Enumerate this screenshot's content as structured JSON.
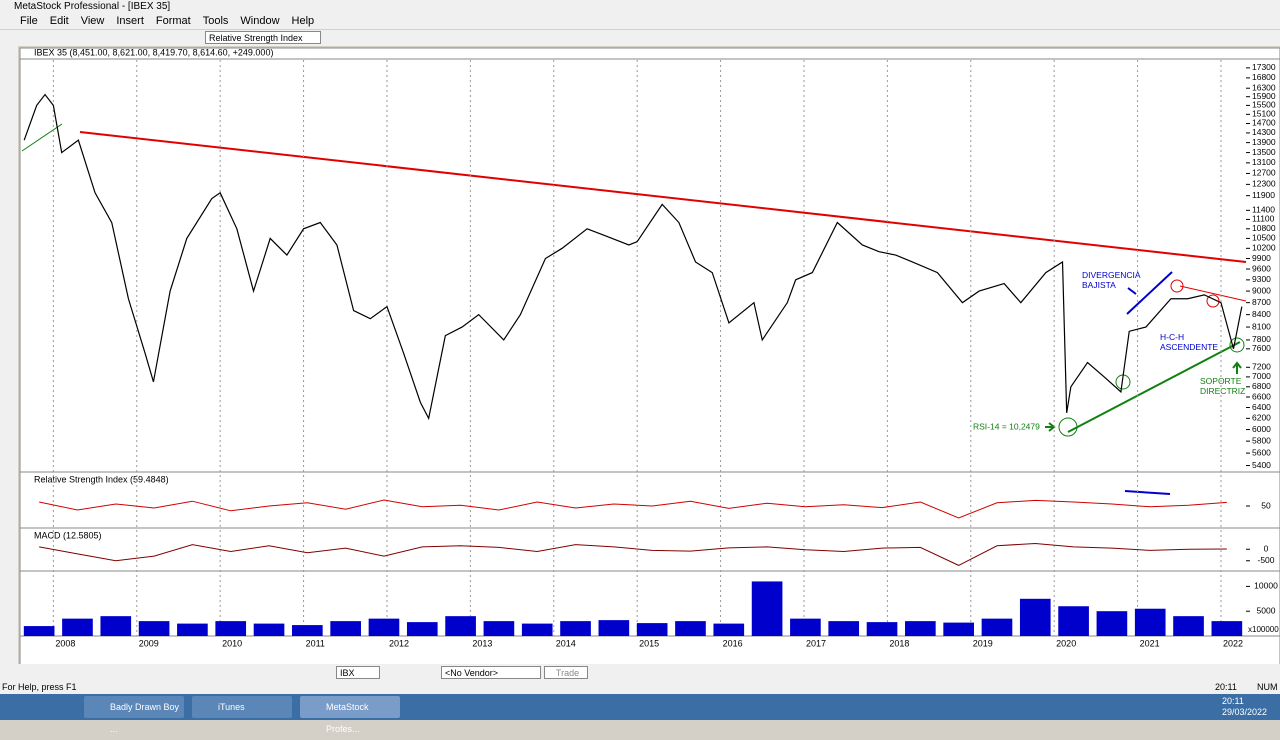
{
  "window": {
    "title": "MetaStock Professional - [IBEX 35]"
  },
  "menu": [
    "File",
    "Edit",
    "View",
    "Insert",
    "Format",
    "Tools",
    "Window",
    "Help"
  ],
  "toolbar": {
    "indicator": "Relative Strength Index"
  },
  "chart_header": "IBEX 35 (8,451.00, 8,621.00, 8,419.70, 8,614.60, +249.000)",
  "chart_data": {
    "type": "line",
    "color": "#000000",
    "log_scale": true,
    "x": [
      2007.65,
      2007.8,
      2007.9,
      2008.0,
      2008.1,
      2008.3,
      2008.5,
      2008.7,
      2008.9,
      2009.1,
      2009.2,
      2009.4,
      2009.6,
      2009.9,
      2010.0,
      2010.2,
      2010.4,
      2010.6,
      2010.8,
      2011.0,
      2011.2,
      2011.4,
      2011.6,
      2011.8,
      2012.0,
      2012.2,
      2012.4,
      2012.5,
      2012.7,
      2012.9,
      2013.1,
      2013.4,
      2013.6,
      2013.9,
      2014.1,
      2014.4,
      2014.6,
      2014.9,
      2015.0,
      2015.3,
      2015.5,
      2015.7,
      2015.9,
      2016.1,
      2016.4,
      2016.5,
      2016.8,
      2016.9,
      2017.1,
      2017.4,
      2017.7,
      2017.9,
      2018.1,
      2018.3,
      2018.6,
      2018.9,
      2019.1,
      2019.4,
      2019.6,
      2019.9,
      2020.1,
      2020.15,
      2020.2,
      2020.4,
      2020.6,
      2020.8,
      2020.9,
      2021.1,
      2021.4,
      2021.6,
      2021.8,
      2022.0,
      2022.15,
      2022.25
    ],
    "values": [
      14000,
      15500,
      16000,
      15500,
      13500,
      14000,
      12000,
      11000,
      8800,
      7500,
      6900,
      9000,
      10500,
      11800,
      12000,
      10800,
      9000,
      10500,
      10000,
      10800,
      11000,
      10300,
      8500,
      8300,
      8600,
      7500,
      6500,
      6200,
      7900,
      8100,
      8400,
      7800,
      8400,
      9900,
      10200,
      10800,
      10600,
      10300,
      10400,
      11600,
      11000,
      9800,
      9500,
      8200,
      8700,
      7800,
      8700,
      9300,
      9500,
      11000,
      10300,
      10100,
      10000,
      9800,
      9500,
      8700,
      9000,
      9200,
      8700,
      9500,
      9800,
      6300,
      6800,
      7300,
      7000,
      6700,
      8000,
      8100,
      8800,
      8800,
      8900,
      8700,
      7600,
      8600
    ],
    "xlim": [
      2007.6,
      2022.3
    ],
    "ylim": [
      5330,
      17600
    ],
    "xticks": [
      2008,
      2009,
      2010,
      2011,
      2012,
      2013,
      2014,
      2015,
      2016,
      2017,
      2018,
      2019,
      2020,
      2021,
      2022
    ],
    "yticks": [
      17300,
      16800,
      16300,
      15900,
      15500,
      15100,
      14700,
      14300,
      13900,
      13500,
      13100,
      12700,
      12300,
      11900,
      11400,
      11100,
      10800,
      10500,
      10200,
      9900,
      9600,
      9300,
      9000,
      8700,
      8400,
      8100,
      7800,
      7600,
      7200,
      7000,
      6800,
      6600,
      6400,
      6200,
      6000,
      5800,
      5600,
      5400
    ],
    "annotations": [
      "DIVERGENCIA BAJISTA",
      "H-C-H ASCENDENTE",
      "SOPORTE DIRECTRIZ",
      "RSI-14 = 10,2479"
    ]
  },
  "rsi_panel": {
    "label": "Relative Strength Index (59.4848)",
    "color": "#d00000",
    "ylim": [
      0,
      100
    ],
    "yticks": [
      50
    ],
    "values": [
      60,
      40,
      55,
      45,
      62,
      38,
      50,
      58,
      42,
      65,
      48,
      52,
      40,
      60,
      45,
      55,
      50,
      62,
      44,
      57,
      48,
      53,
      46,
      60,
      20,
      58,
      64,
      60,
      55,
      48,
      52,
      59
    ]
  },
  "macd_panel": {
    "label": "MACD (12.5805)",
    "color": "#800000",
    "ylim": [
      -900,
      400
    ],
    "yticks": [
      0,
      -500
    ],
    "values": [
      100,
      -200,
      -500,
      -300,
      200,
      -100,
      150,
      -150,
      50,
      -300,
      100,
      150,
      80,
      -100,
      200,
      100,
      -50,
      -80,
      60,
      100,
      -20,
      -100,
      50,
      80,
      -700,
      150,
      250,
      100,
      50,
      -50,
      0,
      12
    ]
  },
  "volume_panel": {
    "color": "#0000cc",
    "ylim": [
      0,
      12500
    ],
    "yticks": [
      10000,
      5000
    ],
    "scale_label": "x100000",
    "values": [
      2000,
      3500,
      4000,
      3000,
      2500,
      3000,
      2500,
      2200,
      3000,
      3500,
      2800,
      4000,
      3000,
      2500,
      3000,
      3200,
      2600,
      3000,
      2500,
      11000,
      3500,
      3000,
      2800,
      3000,
      2700,
      3500,
      7500,
      6000,
      5000,
      5500,
      4000,
      3000
    ]
  },
  "combos": {
    "symbol": "IBX",
    "vendor": "<No Vendor>",
    "trade": "Trade"
  },
  "status": {
    "help": "For Help, press F1",
    "time": "20:11",
    "num": "NUM"
  },
  "taskbar": {
    "items": [
      "Badly Drawn Boy ...",
      "iTunes",
      "MetaStock Profes..."
    ],
    "time": "20:11",
    "date": "29/03/2022"
  }
}
